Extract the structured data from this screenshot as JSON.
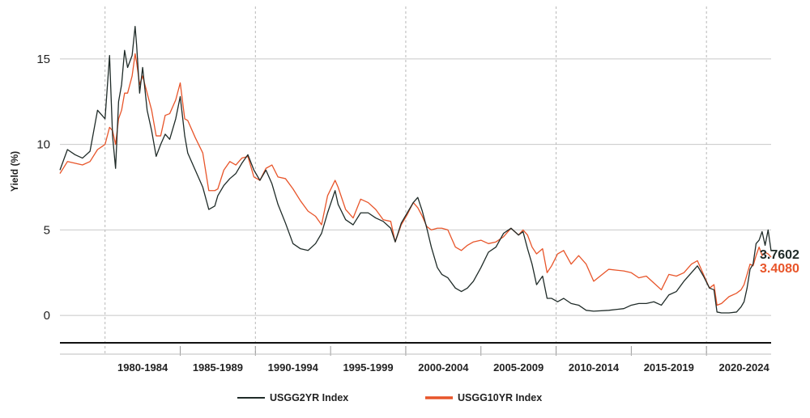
{
  "chart_data": {
    "type": "line",
    "title": "",
    "xlabel": "",
    "ylabel": "Yield (%)",
    "ylim": [
      -1.6,
      17.5
    ],
    "xlim": [
      1976.5,
      2023.8
    ],
    "y_ticks": [
      0,
      5,
      10,
      15
    ],
    "grid": true,
    "legend_position": "bottom",
    "periods": [
      {
        "label": "1980-1984",
        "start": 1980,
        "end": 1985
      },
      {
        "label": "1985-1989",
        "start": 1985,
        "end": 1990
      },
      {
        "label": "1990-1994",
        "start": 1990,
        "end": 1995
      },
      {
        "label": "1995-1999",
        "start": 1995,
        "end": 2000
      },
      {
        "label": "2000-2004",
        "start": 2000,
        "end": 2005
      },
      {
        "label": "2005-2009",
        "start": 2005,
        "end": 2010
      },
      {
        "label": "2010-2014",
        "start": 2010,
        "end": 2015
      },
      {
        "label": "2015-2019",
        "start": 2015,
        "end": 2020
      },
      {
        "label": "2020-2024",
        "start": 2020,
        "end": 2025
      }
    ],
    "series": [
      {
        "name": "USGG2YR Index",
        "color": "#1f2b28",
        "last_value": "3.7602",
        "x": [
          1976.5,
          1977.0,
          1977.5,
          1978.0,
          1978.5,
          1979.0,
          1979.5,
          1979.8,
          1980.0,
          1980.2,
          1980.4,
          1980.6,
          1980.8,
          1981.0,
          1981.3,
          1981.5,
          1981.6,
          1981.8,
          1982.0,
          1982.3,
          1982.6,
          1982.9,
          1983.2,
          1983.5,
          1983.8,
          1984.2,
          1984.5,
          1984.8,
          1985.0,
          1985.5,
          1986.0,
          1986.4,
          1986.8,
          1987.0,
          1987.4,
          1987.8,
          1988.2,
          1988.6,
          1989.0,
          1989.4,
          1989.8,
          1990.2,
          1990.6,
          1991.0,
          1991.5,
          1992.0,
          1992.5,
          1993.0,
          1993.5,
          1993.9,
          1994.3,
          1994.8,
          1995.0,
          1995.5,
          1996.0,
          1996.5,
          1997.0,
          1997.5,
          1998.0,
          1998.5,
          1998.8,
          1999.2,
          1999.6,
          2000.0,
          2000.3,
          2000.6,
          2000.9,
          2001.2,
          2001.6,
          2001.9,
          2002.3,
          2002.8,
          2003.2,
          2003.6,
          2004.0,
          2004.5,
          2005.0,
          2005.5,
          2006.0,
          2006.5,
          2007.0,
          2007.3,
          2007.6,
          2007.9,
          2008.2,
          2008.6,
          2008.9,
          2009.2,
          2009.6,
          2010.0,
          2010.5,
          2011.0,
          2011.5,
          2012.0,
          2013.0,
          2014.0,
          2014.5,
          2015.0,
          2015.5,
          2016.0,
          2016.5,
          2017.0,
          2017.5,
          2018.0,
          2018.5,
          2018.9,
          2019.3,
          2019.7,
          2020.0,
          2020.2,
          2020.5,
          2021.0,
          2021.5,
          2021.8,
          2022.0,
          2022.2,
          2022.4,
          2022.6,
          2022.8,
          2023.0,
          2023.2,
          2023.4,
          2023.6,
          2023.8
        ],
        "values": [
          8.5,
          9.7,
          9.4,
          9.2,
          9.6,
          12.0,
          11.5,
          15.2,
          10.5,
          8.6,
          12.5,
          13.5,
          15.5,
          14.5,
          15.2,
          16.9,
          15.8,
          13.0,
          14.5,
          12.0,
          10.8,
          9.3,
          10.0,
          10.6,
          10.3,
          11.5,
          12.8,
          10.5,
          9.5,
          8.5,
          7.5,
          6.2,
          6.4,
          7.0,
          7.6,
          8.0,
          8.3,
          8.9,
          9.4,
          8.5,
          7.9,
          8.5,
          7.7,
          6.5,
          5.4,
          4.2,
          3.9,
          3.8,
          4.2,
          4.8,
          6.0,
          7.3,
          6.5,
          5.6,
          5.3,
          6.0,
          6.0,
          5.7,
          5.5,
          5.1,
          4.3,
          5.4,
          6.0,
          6.6,
          6.9,
          6.1,
          5.1,
          4.0,
          2.8,
          2.4,
          2.2,
          1.6,
          1.4,
          1.6,
          2.0,
          2.8,
          3.7,
          4.0,
          4.8,
          5.1,
          4.7,
          4.9,
          3.9,
          3.0,
          1.8,
          2.3,
          1.0,
          1.0,
          0.8,
          1.0,
          0.7,
          0.6,
          0.3,
          0.25,
          0.3,
          0.4,
          0.6,
          0.7,
          0.7,
          0.8,
          0.6,
          1.2,
          1.4,
          2.0,
          2.5,
          2.9,
          2.3,
          1.6,
          1.5,
          0.2,
          0.15,
          0.15,
          0.2,
          0.5,
          0.8,
          1.6,
          2.7,
          3.0,
          4.2,
          4.4,
          4.9,
          4.1,
          5.0,
          3.76
        ]
      },
      {
        "name": "USGG10YR Index",
        "color": "#e8552a",
        "last_value": "3.4080",
        "x": [
          1976.5,
          1977.0,
          1977.5,
          1978.0,
          1978.5,
          1979.0,
          1979.5,
          1979.8,
          1980.0,
          1980.2,
          1980.4,
          1980.6,
          1980.8,
          1981.0,
          1981.3,
          1981.5,
          1981.6,
          1981.8,
          1982.0,
          1982.3,
          1982.6,
          1982.9,
          1983.2,
          1983.5,
          1983.8,
          1984.2,
          1984.5,
          1984.8,
          1985.0,
          1985.5,
          1986.0,
          1986.4,
          1986.8,
          1987.0,
          1987.4,
          1987.8,
          1988.2,
          1988.6,
          1989.0,
          1989.4,
          1989.8,
          1990.2,
          1990.6,
          1991.0,
          1991.5,
          1992.0,
          1992.5,
          1993.0,
          1993.5,
          1993.9,
          1994.3,
          1994.8,
          1995.0,
          1995.5,
          1996.0,
          1996.5,
          1997.0,
          1997.5,
          1998.0,
          1998.5,
          1998.8,
          1999.2,
          1999.6,
          2000.0,
          2000.3,
          2000.6,
          2000.9,
          2001.2,
          2001.6,
          2001.9,
          2002.3,
          2002.8,
          2003.2,
          2003.6,
          2004.0,
          2004.5,
          2005.0,
          2005.5,
          2006.0,
          2006.5,
          2007.0,
          2007.3,
          2007.6,
          2007.9,
          2008.2,
          2008.6,
          2008.9,
          2009.2,
          2009.6,
          2010.0,
          2010.5,
          2011.0,
          2011.5,
          2012.0,
          2013.0,
          2014.0,
          2014.5,
          2015.0,
          2015.5,
          2016.0,
          2016.5,
          2017.0,
          2017.5,
          2018.0,
          2018.5,
          2018.9,
          2019.3,
          2019.7,
          2020.0,
          2020.2,
          2020.5,
          2021.0,
          2021.5,
          2021.8,
          2022.0,
          2022.2,
          2022.4,
          2022.6,
          2022.8,
          2023.0,
          2023.2,
          2023.4,
          2023.6,
          2023.8
        ],
        "values": [
          8.3,
          9.0,
          8.9,
          8.8,
          9.0,
          9.7,
          10.0,
          11.0,
          10.8,
          10.0,
          11.5,
          12.0,
          13.0,
          13.0,
          14.0,
          15.3,
          14.8,
          13.5,
          14.0,
          13.0,
          12.0,
          10.5,
          10.5,
          11.7,
          11.8,
          12.6,
          13.6,
          11.5,
          11.4,
          10.4,
          9.5,
          7.3,
          7.3,
          7.4,
          8.5,
          9.0,
          8.8,
          9.2,
          9.3,
          8.1,
          7.9,
          8.6,
          8.8,
          8.1,
          8.0,
          7.4,
          6.7,
          6.1,
          5.8,
          5.3,
          7.0,
          7.9,
          7.5,
          6.2,
          5.7,
          6.8,
          6.6,
          6.2,
          5.6,
          5.5,
          4.3,
          5.3,
          5.9,
          6.6,
          6.3,
          5.8,
          5.2,
          5.0,
          5.1,
          5.1,
          5.0,
          4.0,
          3.8,
          4.1,
          4.3,
          4.4,
          4.2,
          4.3,
          4.6,
          5.1,
          4.7,
          5.0,
          4.7,
          4.0,
          3.6,
          3.9,
          2.5,
          2.9,
          3.6,
          3.8,
          3.0,
          3.5,
          3.0,
          2.0,
          2.7,
          2.6,
          2.5,
          2.2,
          2.3,
          1.9,
          1.5,
          2.4,
          2.3,
          2.5,
          3.0,
          3.2,
          2.4,
          1.6,
          1.8,
          0.6,
          0.7,
          1.1,
          1.3,
          1.5,
          1.8,
          2.4,
          3.0,
          2.9,
          3.5,
          4.0,
          3.5,
          3.7,
          3.6,
          3.41
        ]
      }
    ]
  }
}
